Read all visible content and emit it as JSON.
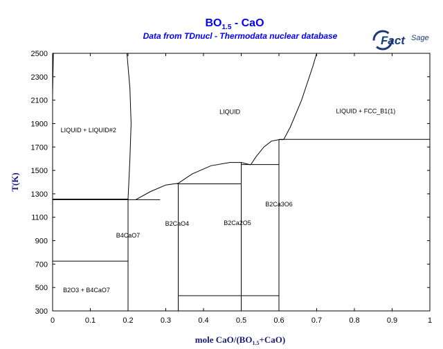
{
  "chart_data": {
    "type": "phase-diagram",
    "title": {
      "main": "BO",
      "sub": "1.5",
      "rest": " - CaO"
    },
    "subtitle": "Data from TDnucl - Thermodata nuclear database",
    "logo": {
      "text_bold": "Fact",
      "text_light": "Sage"
    },
    "xlabel": {
      "pre": "mole CaO/(BO",
      "sub": "1.5",
      "post": "+CaO)"
    },
    "ylabel": "T(K)",
    "xlim": [
      0,
      1
    ],
    "ylim": [
      300,
      2500
    ],
    "x_ticks": [
      0,
      0.1,
      0.2,
      0.3,
      0.4,
      0.5,
      0.6,
      0.7,
      0.8,
      0.9,
      1
    ],
    "x_tick_labels": [
      "0",
      "0.1",
      "0.2",
      "0.3",
      "0.4",
      "0.5",
      "0.6",
      "0.7",
      "0.8",
      "0.9",
      "1"
    ],
    "y_ticks": [
      300,
      500,
      700,
      900,
      1100,
      1300,
      1500,
      1700,
      1900,
      2100,
      2300,
      2500
    ],
    "y_tick_labels": [
      "300",
      "500",
      "700",
      "900",
      "1100",
      "1300",
      "1500",
      "1700",
      "1900",
      "2100",
      "2300",
      "2500"
    ],
    "region_labels": [
      {
        "text": "LIQUID",
        "x": 0.47,
        "y": 2000
      },
      {
        "text": "LIQUID + FCC_B1(1)",
        "x": 0.83,
        "y": 2005
      },
      {
        "text": "LIQUID + LIQUID#2",
        "x": 0.095,
        "y": 1845
      },
      {
        "text": "B2Ca3O6",
        "x": 0.6,
        "y": 1210
      },
      {
        "text": "B2CaO4",
        "x": 0.33,
        "y": 1044
      },
      {
        "text": "B2Ca2O5",
        "x": 0.49,
        "y": 1050
      },
      {
        "text": "B4CaO7",
        "x": 0.2,
        "y": 945
      },
      {
        "text": "B2O3 + B4CaO7",
        "x": 0.09,
        "y": 478
      }
    ],
    "lines": [
      {
        "name": "miscibility-gap-boundary",
        "points": [
          [
            0.2,
            1255
          ],
          [
            0.205,
            1600
          ],
          [
            0.208,
            1900
          ],
          [
            0.205,
            2200
          ],
          [
            0.197,
            2500
          ]
        ]
      },
      {
        "name": "miscibility-gap-left-edge",
        "points": [
          [
            0,
            2150
          ],
          [
            0.002,
            2500
          ]
        ]
      },
      {
        "name": "monotectic",
        "points": [
          [
            0,
            1255
          ],
          [
            0.2,
            1255
          ]
        ]
      },
      {
        "name": "eutectic",
        "points": [
          [
            0,
            1250
          ],
          [
            0.285,
            1250
          ]
        ]
      },
      {
        "name": "liquidus-b2cao4",
        "points": [
          [
            0.22,
            1250
          ],
          [
            0.26,
            1320
          ],
          [
            0.3,
            1375
          ],
          [
            0.333,
            1390
          ]
        ]
      },
      {
        "name": "b2cao4-peritectic",
        "points": [
          [
            0.33,
            1385
          ],
          [
            0.5,
            1385
          ]
        ]
      },
      {
        "name": "liquidus-b2ca2o5",
        "points": [
          [
            0.333,
            1390
          ],
          [
            0.37,
            1470
          ],
          [
            0.42,
            1540
          ],
          [
            0.47,
            1568
          ],
          [
            0.5,
            1568
          ],
          [
            0.525,
            1548
          ]
        ]
      },
      {
        "name": "liquidus-b2ca3o6",
        "points": [
          [
            0.525,
            1548
          ],
          [
            0.54,
            1620
          ],
          [
            0.56,
            1700
          ],
          [
            0.58,
            1750
          ],
          [
            0.6,
            1763
          ],
          [
            0.6125,
            1763
          ]
        ]
      },
      {
        "name": "b2ca2o5-peritectic",
        "points": [
          [
            0.5,
            1550
          ],
          [
            0.6,
            1550
          ]
        ]
      },
      {
        "name": "b2ca3o6-peritectic",
        "points": [
          [
            0.6,
            1765
          ],
          [
            1,
            1765
          ]
        ]
      },
      {
        "name": "liquidus-cao",
        "points": [
          [
            0.6125,
            1763
          ],
          [
            0.63,
            1870
          ],
          [
            0.66,
            2100
          ],
          [
            0.69,
            2390
          ],
          [
            0.7,
            2500
          ]
        ]
      },
      {
        "name": "b4cao7-phase",
        "points": [
          [
            0.2,
            300
          ],
          [
            0.2,
            1255
          ]
        ]
      },
      {
        "name": "b2cao4-phase",
        "points": [
          [
            0.333,
            300
          ],
          [
            0.333,
            1390
          ]
        ]
      },
      {
        "name": "b2ca2o5-phase",
        "points": [
          [
            0.5,
            300
          ],
          [
            0.5,
            1568
          ]
        ]
      },
      {
        "name": "b2ca3o6-phase",
        "points": [
          [
            0.6,
            300
          ],
          [
            0.6,
            1763
          ]
        ]
      },
      {
        "name": "b2o3-transition",
        "points": [
          [
            0,
            725
          ],
          [
            0.2,
            725
          ]
        ]
      },
      {
        "name": "low-temperature-transition",
        "points": [
          [
            0.333,
            430
          ],
          [
            0.6,
            430
          ]
        ]
      }
    ]
  }
}
